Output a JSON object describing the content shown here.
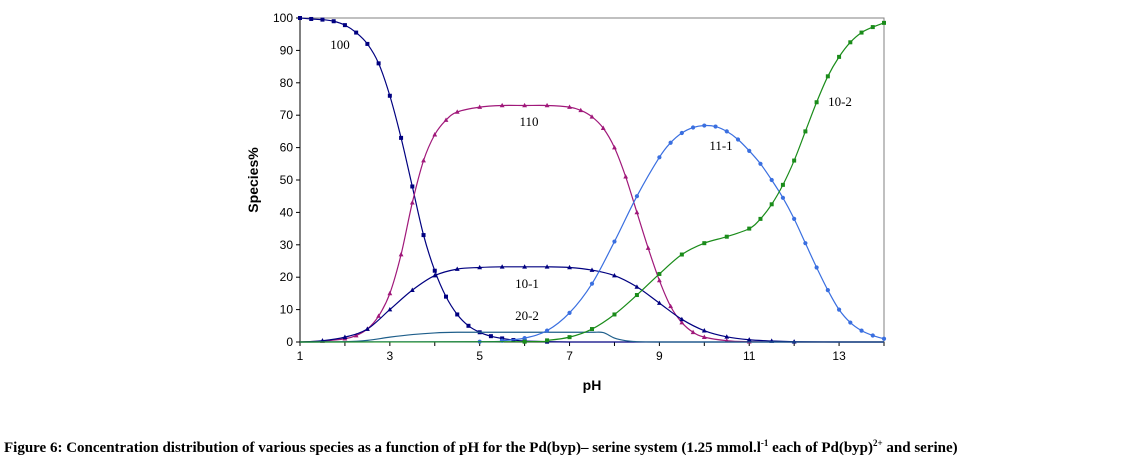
{
  "chart_data": {
    "type": "line",
    "xlabel": "pH",
    "ylabel": "Species%",
    "xlim": [
      1,
      14
    ],
    "ylim": [
      0,
      100
    ],
    "x_ticks": [
      "1",
      "3",
      "5",
      "7",
      "9",
      "11",
      "13"
    ],
    "y_ticks": [
      "0",
      "10",
      "20",
      "30",
      "40",
      "50",
      "60",
      "70",
      "80",
      "90",
      "100"
    ],
    "grid": false,
    "legend": "inline labels",
    "series": [
      {
        "name": "100",
        "color": "#000080",
        "x": [
          1,
          1.25,
          1.5,
          1.75,
          2,
          2.25,
          2.5,
          2.75,
          3,
          3.25,
          3.5,
          3.75,
          4,
          4.25,
          4.5,
          4.75,
          5,
          5.25,
          5.5,
          5.75,
          6,
          6.5,
          7,
          8,
          9,
          10,
          11,
          12,
          13,
          14
        ],
        "y": [
          100,
          99.7,
          99.5,
          99,
          97.8,
          95.5,
          92,
          86,
          76,
          63,
          48,
          33,
          22,
          14,
          8.5,
          5,
          3,
          1.8,
          1.1,
          0.6,
          0.3,
          0.1,
          0,
          0,
          0,
          0,
          0,
          0,
          0,
          0
        ]
      },
      {
        "name": "110",
        "color": "#a0187a",
        "x": [
          1,
          1.5,
          2,
          2.25,
          2.5,
          2.75,
          3,
          3.25,
          3.5,
          3.75,
          4,
          4.25,
          4.5,
          5,
          5.5,
          6,
          6.5,
          7,
          7.25,
          7.5,
          7.75,
          8,
          8.25,
          8.5,
          8.75,
          9,
          9.25,
          9.5,
          9.75,
          10,
          10.5,
          11,
          12,
          13,
          14
        ],
        "y": [
          0,
          0.3,
          1,
          2,
          4,
          8,
          15,
          27,
          43,
          56,
          64,
          68.5,
          71,
          72.5,
          73,
          73,
          73,
          72.5,
          71.5,
          69.5,
          66,
          60,
          51,
          40,
          29,
          19,
          11,
          6,
          3,
          1.5,
          0.4,
          0.1,
          0,
          0,
          0
        ]
      },
      {
        "name": "10-1",
        "color": "#000080",
        "x": [
          1,
          1.5,
          2,
          2.5,
          3,
          3.5,
          4,
          4.5,
          5,
          5.5,
          6,
          6.5,
          7,
          7.5,
          8,
          8.5,
          9,
          9.5,
          10,
          10.5,
          11,
          11.5,
          12,
          13,
          14
        ],
        "y": [
          0,
          0.4,
          1.5,
          4,
          10,
          16,
          20.5,
          22.5,
          23,
          23.2,
          23.2,
          23.2,
          23,
          22.2,
          20.5,
          17,
          12,
          7,
          3.5,
          1.6,
          0.7,
          0.3,
          0.1,
          0,
          0
        ]
      },
      {
        "name": "20-2",
        "color": "#1f5f8b",
        "x": [
          1,
          2,
          2.5,
          3,
          3.5,
          4,
          4.5,
          5,
          5.5,
          6,
          6.5,
          7,
          7.5,
          7.75,
          8,
          8.25,
          8.5,
          9,
          10,
          11,
          12,
          14
        ],
        "y": [
          0,
          0.1,
          0.5,
          1.5,
          2.3,
          2.8,
          3,
          3,
          3,
          3,
          3,
          3,
          3,
          2.9,
          1.2,
          0.4,
          0.1,
          0,
          0,
          0,
          0,
          0
        ]
      },
      {
        "name": "11-1",
        "color": "#3a6fe0",
        "x": [
          1,
          5,
          5.5,
          6,
          6.5,
          7,
          7.5,
          8,
          8.5,
          9,
          9.25,
          9.5,
          9.75,
          10,
          10.25,
          10.5,
          10.75,
          11,
          11.25,
          11.5,
          11.75,
          12,
          12.25,
          12.5,
          12.75,
          13,
          13.25,
          13.5,
          13.75,
          14
        ],
        "y": [
          0,
          0.1,
          0.4,
          1.2,
          3.5,
          9,
          18,
          31,
          45,
          57,
          61.5,
          64.5,
          66.2,
          66.8,
          66.5,
          65,
          62.5,
          59,
          55,
          50,
          44.5,
          38,
          30.5,
          23,
          16,
          10,
          6,
          3.5,
          2,
          1
        ]
      },
      {
        "name": "10-2",
        "color": "#1a8c1a",
        "x": [
          1,
          6,
          6.5,
          7,
          7.5,
          8,
          8.5,
          9,
          9.5,
          10,
          10.5,
          11,
          11.25,
          11.5,
          11.75,
          12,
          12.25,
          12.5,
          12.75,
          13,
          13.25,
          13.5,
          13.75,
          14
        ],
        "y": [
          0,
          0.1,
          0.5,
          1.5,
          4,
          8.5,
          14.5,
          21,
          27,
          30.5,
          32.5,
          35,
          38,
          42.5,
          48.5,
          56,
          65,
          74,
          82,
          88,
          92.5,
          95.5,
          97.2,
          98.5
        ]
      }
    ],
    "caption": {
      "prefix": "Figure 6: Concentration distribution of various species as a function of pH for the Pd(byp)– serine system (1.25 mmol.l",
      "sup1": "-1",
      "middle": " each of Pd(byp)",
      "sup2": "2+",
      "suffix": " and serine)"
    }
  }
}
